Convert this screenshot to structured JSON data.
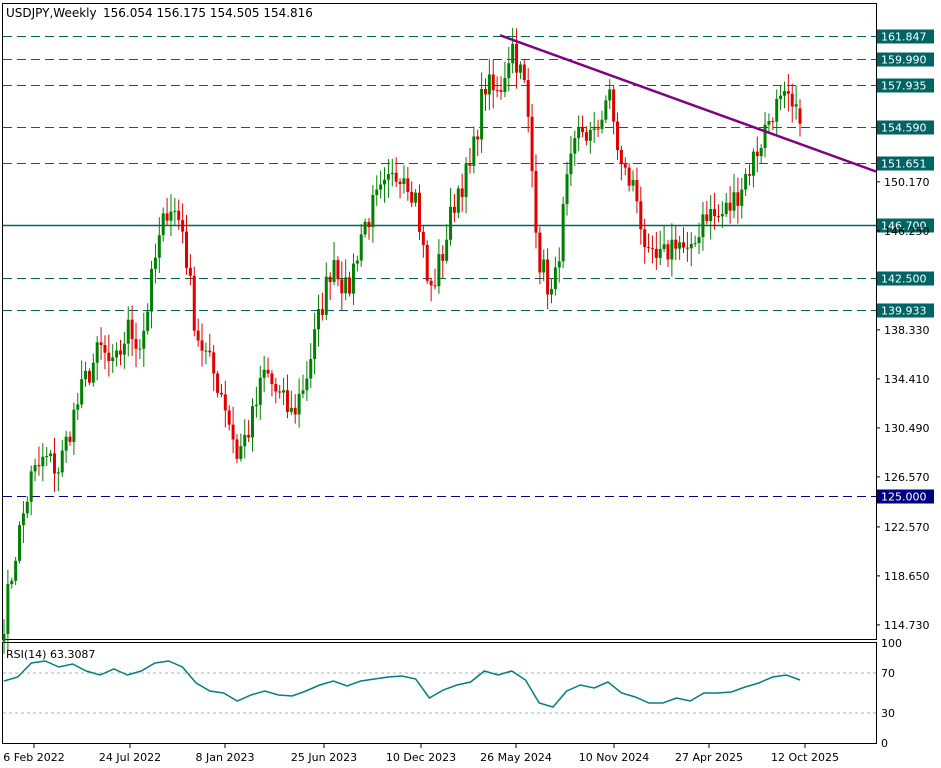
{
  "header": {
    "symbol": "USDJPY,Weekly",
    "ohlc": "156.054 156.175 154.505 154.816"
  },
  "chart_data": [
    {
      "type": "candlestick",
      "title": "USDJPY,Weekly",
      "ylim": [
        113.6,
        164.4
      ],
      "y_ticks": [
        "150.170",
        "146.250",
        "138.330",
        "134.410",
        "130.490",
        "126.570",
        "122.570",
        "118.650",
        "114.730"
      ],
      "x_ticks": [
        "6 Feb 2022",
        "24 Jul 2022",
        "8 Jan 2023",
        "25 Jun 2023",
        "10 Dec 2023",
        "26 May 2024",
        "10 Nov 2024",
        "27 Apr 2025",
        "12 Oct 2025"
      ],
      "current_price": "154.590",
      "up_color": "#008000",
      "down_color": "#e00000",
      "levels": [
        {
          "value": 161.847,
          "label": "161.847",
          "style": "dashed"
        },
        {
          "value": 159.99,
          "label": "159.990",
          "style": "dashed"
        },
        {
          "value": 157.935,
          "label": "157.935",
          "style": "dashed"
        },
        {
          "value": 154.59,
          "label": "154.590",
          "style": "dashed"
        },
        {
          "value": 151.651,
          "label": "151.651",
          "style": "dashed"
        },
        {
          "value": 146.7,
          "label": "146.700",
          "style": "solid"
        },
        {
          "value": 142.5,
          "label": "142.500",
          "style": "dashed"
        },
        {
          "value": 139.933,
          "label": "139.933",
          "style": "dashed"
        },
        {
          "value": 125.0,
          "label": "125.000",
          "style": "dashed",
          "color": "#000080"
        }
      ],
      "trendline": {
        "color": "#800080",
        "from": {
          "x": "26 May 2024",
          "y": 161.9
        },
        "to": {
          "x": "after 12 Oct 2025",
          "y": 151.0
        }
      },
      "close_path": [
        [
          "6 Feb 2022",
          115.2
        ],
        [
          "Mar 2022",
          121.5
        ],
        [
          "Apr 2022",
          126.5
        ],
        [
          "Apr 2022",
          128.0
        ],
        [
          "May 2022",
          127.2
        ],
        [
          "May 2022",
          131.2
        ],
        [
          "Jun 2022",
          134.5
        ],
        [
          "Jun 2022",
          136.8
        ],
        [
          "Jul 2022",
          135.0
        ],
        [
          "24 Jul 2022",
          138.4
        ],
        [
          "Aug 2022",
          137.2
        ],
        [
          "Sep 2022",
          143.8
        ],
        [
          "Oct 2022",
          148.7
        ],
        [
          "Oct 2022",
          146.5
        ],
        [
          "Nov 2022",
          138.2
        ],
        [
          "Dec 2022",
          135.5
        ],
        [
          "Dec 2022",
          133.0
        ],
        [
          "8 Jan 2023",
          128.3
        ],
        [
          "Jan 2023",
          130.8
        ],
        [
          "Feb 2023",
          135.0
        ],
        [
          "Mar 2023",
          133.0
        ],
        [
          "Mar 2023",
          131.5
        ],
        [
          "Apr 2023",
          134.5
        ],
        [
          "May 2023",
          139.5
        ],
        [
          "25 Jun 2023",
          144.3
        ],
        [
          "Jul 2023",
          141.0
        ],
        [
          "Aug 2023",
          146.0
        ],
        [
          "Sep 2023",
          148.4
        ],
        [
          "Oct 2023",
          149.8
        ],
        [
          "Nov 2023",
          151.4
        ],
        [
          "Nov 2023",
          149.0
        ],
        [
          "10 Dec 2023",
          141.0
        ],
        [
          "Jan 2024",
          144.6
        ],
        [
          "Feb 2024",
          149.5
        ],
        [
          "Mar 2024",
          151.2
        ],
        [
          "Apr 2024",
          158.0
        ],
        [
          "26 May 2024",
          157.0
        ],
        [
          "Jun 2024",
          161.3
        ],
        [
          "Jul 2024",
          157.5
        ],
        [
          "Aug 2024",
          144.0
        ],
        [
          "Sep 2024",
          140.8
        ],
        [
          "Oct 2024",
          149.8
        ],
        [
          "10 Nov 2024",
          154.5
        ],
        [
          "Dec 2024",
          153.5
        ],
        [
          "Jan 2025",
          157.5
        ],
        [
          "Feb 2025",
          151.2
        ],
        [
          "Mar 2025",
          149.5
        ],
        [
          "Apr 2025",
          143.5
        ],
        [
          "27 Apr 2025",
          144.0
        ],
        [
          "May 2025",
          145.8
        ],
        [
          "Jun 2025",
          143.8
        ],
        [
          "Jul 2025",
          148.0
        ],
        [
          "Aug 2025",
          147.2
        ],
        [
          "Sep 2025",
          148.3
        ],
        [
          "12 Oct 2025",
          150.6
        ],
        [
          "Oct 2025",
          153.0
        ],
        [
          "Nov 2025",
          156.0
        ],
        [
          "Nov 2025",
          156.5
        ],
        [
          "Dec 2025",
          154.8
        ]
      ]
    },
    {
      "type": "line",
      "title": "RSI(14) 63.3087",
      "ylim": [
        0,
        100
      ],
      "y_ticks": [
        "100",
        "70",
        "30",
        "0"
      ],
      "levels": [
        70,
        30
      ],
      "line_color": "#008080",
      "values": [
        62,
        66,
        80,
        82,
        76,
        79,
        72,
        68,
        74,
        68,
        72,
        80,
        82,
        76,
        60,
        52,
        50,
        42,
        48,
        52,
        48,
        47,
        52,
        58,
        62,
        57,
        62,
        64,
        66,
        67,
        64,
        45,
        53,
        58,
        61,
        72,
        68,
        72,
        63,
        40,
        36,
        52,
        58,
        55,
        61,
        50,
        46,
        40,
        40,
        45,
        42,
        50,
        50,
        51,
        56,
        60,
        66,
        68,
        63
      ]
    }
  ]
}
